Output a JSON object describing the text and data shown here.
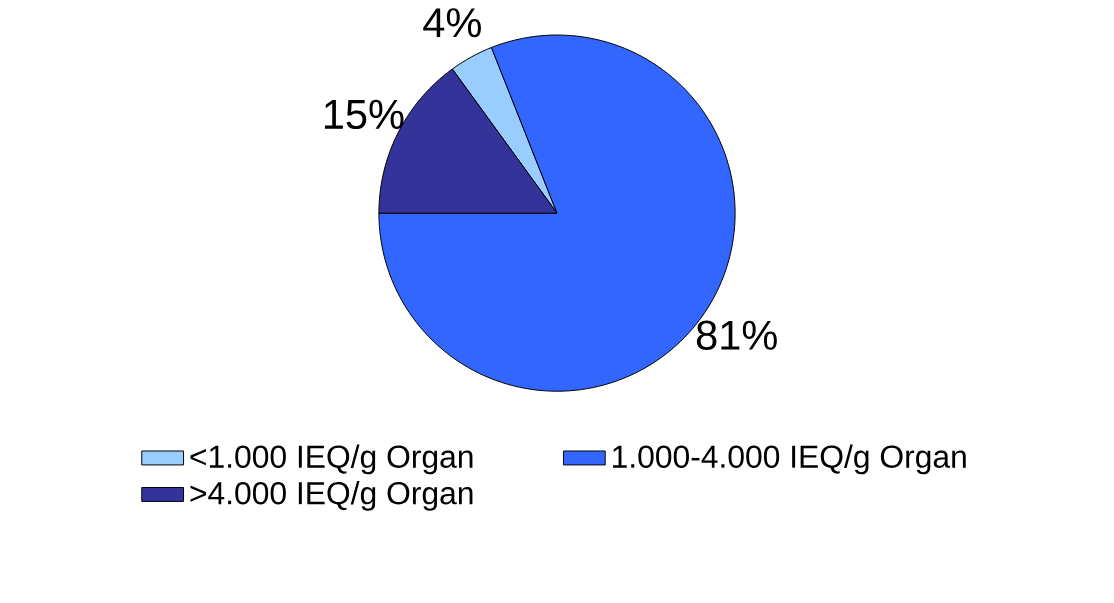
{
  "chart_data": {
    "type": "pie",
    "categories": [
      "<1.000 IEQ/g Organ",
      "1.000-4.000 IEQ/g Organ",
      ">4.000 IEQ/g Organ"
    ],
    "values": [
      4,
      81,
      15
    ],
    "colors": [
      "#99ccff",
      "#3366ff",
      "#333399"
    ],
    "data_labels": true,
    "value_labels": [
      "4%",
      "81%",
      "15%"
    ],
    "legend": "bottom"
  }
}
